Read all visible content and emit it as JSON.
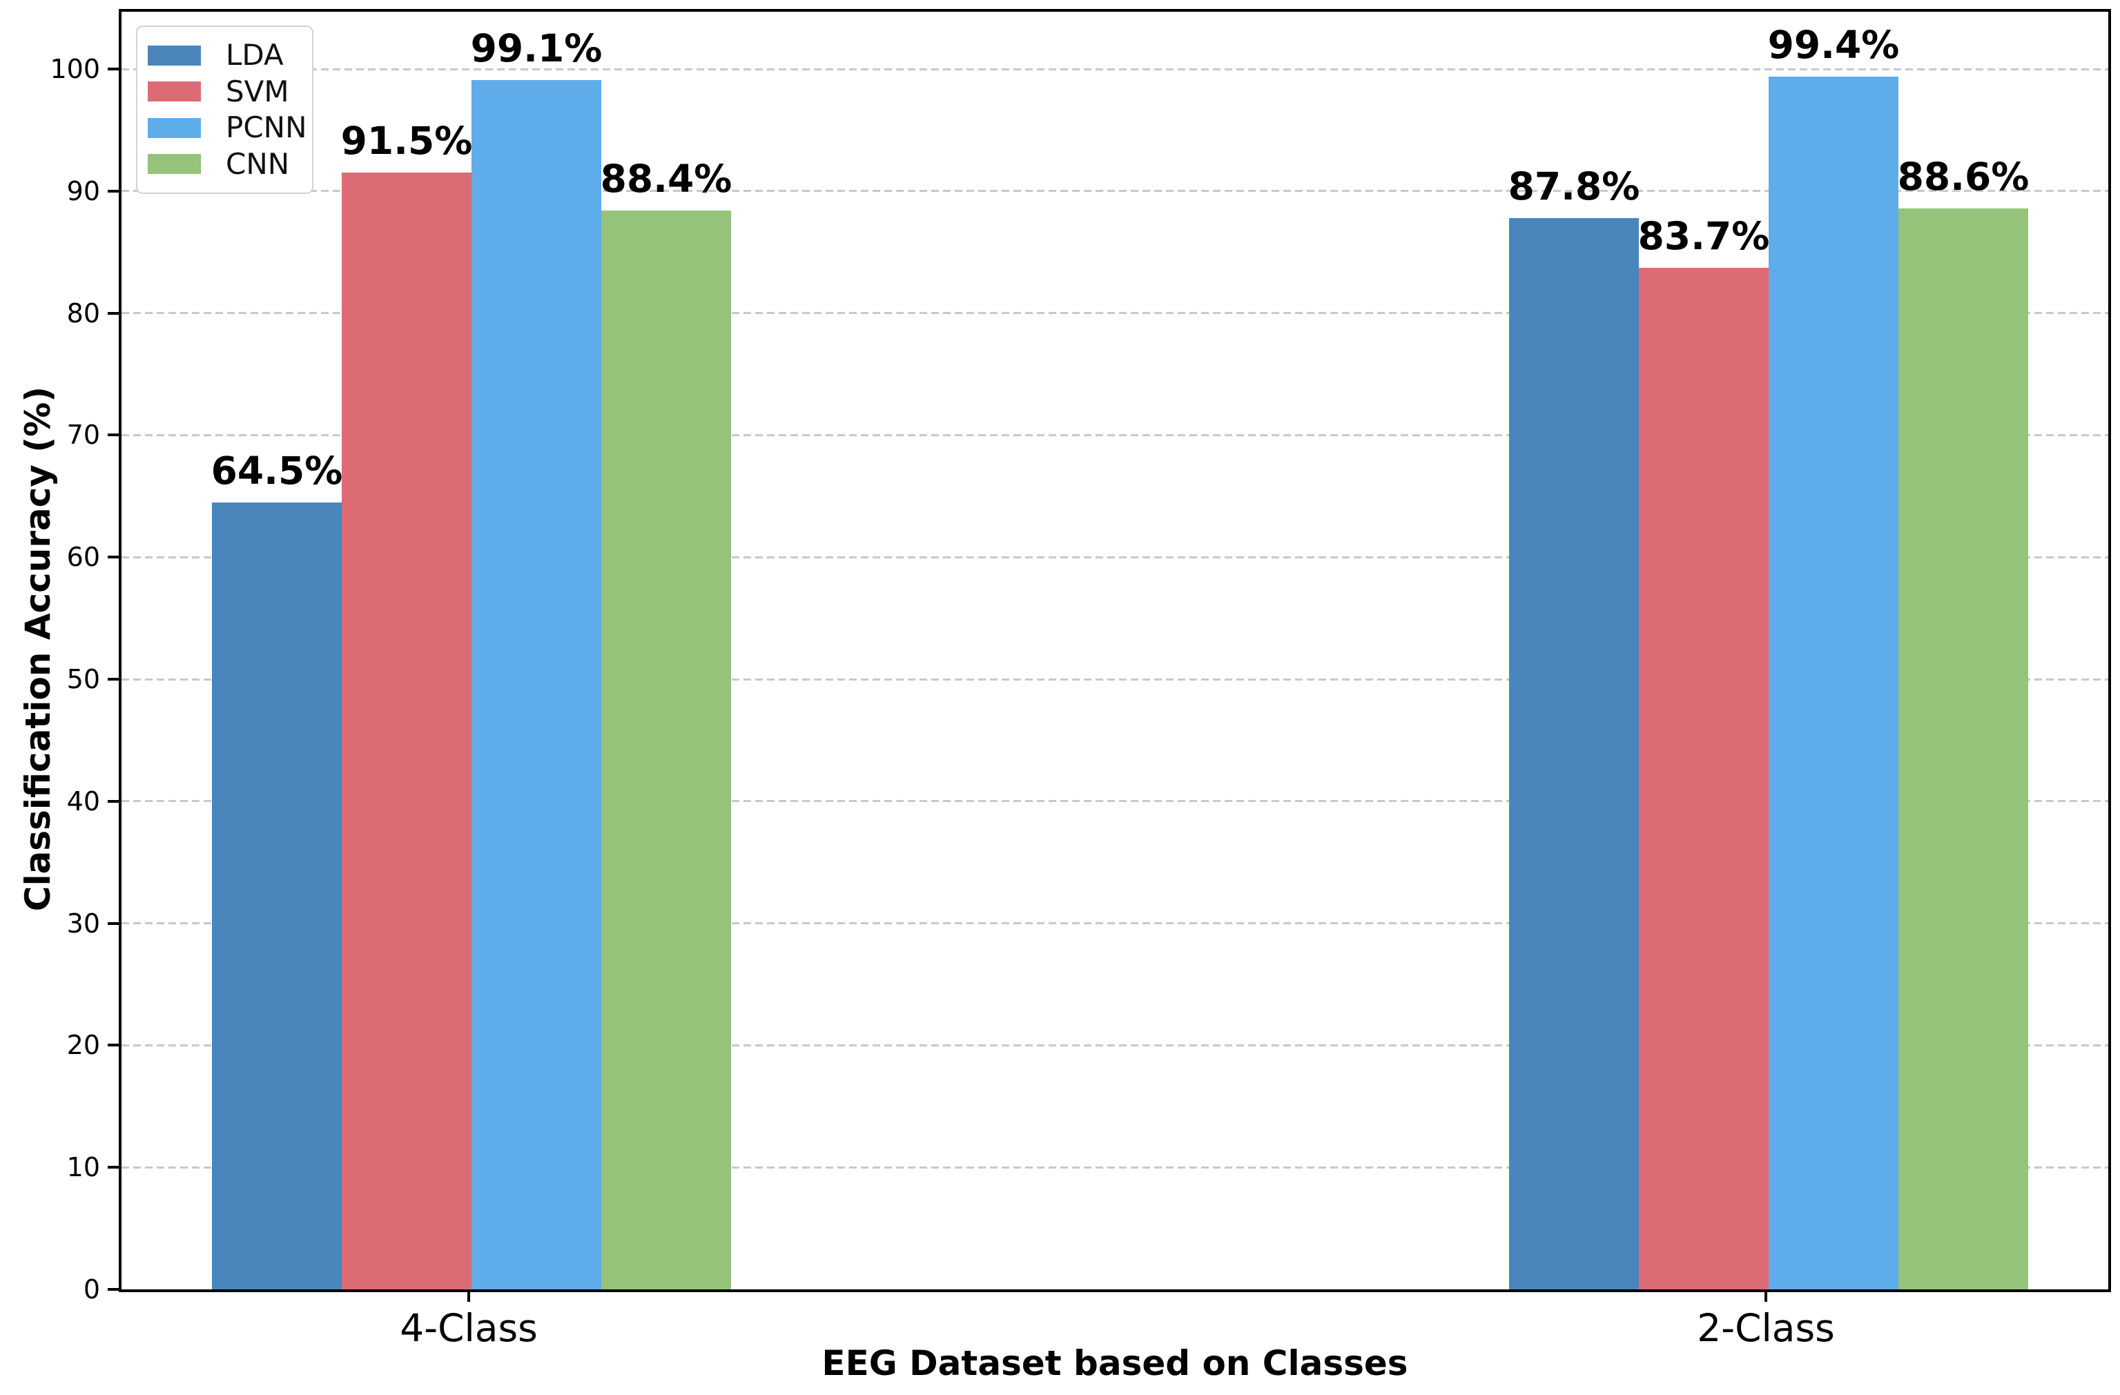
{
  "chart_data": {
    "type": "bar",
    "title": "",
    "xlabel": "EEG Dataset based on Classes",
    "ylabel": "Classification Accuracy (%)",
    "categories": [
      "4-Class",
      "2-Class"
    ],
    "series": [
      {
        "name": "LDA",
        "color": "#4886BC",
        "values": [
          64.5,
          87.8
        ],
        "labels": [
          "64.5%",
          "87.8%"
        ]
      },
      {
        "name": "SVM",
        "color": "#DD6B76",
        "values": [
          91.5,
          83.7
        ],
        "labels": [
          "91.5%",
          "83.7%"
        ]
      },
      {
        "name": "PCNN",
        "color": "#5FACEA",
        "values": [
          99.1,
          99.4
        ],
        "labels": [
          "99.1%",
          "99.4%"
        ]
      },
      {
        "name": "CNN",
        "color": "#95C379",
        "values": [
          88.4,
          88.6
        ],
        "labels": [
          "88.4%",
          "88.6%"
        ]
      }
    ],
    "ylim": [
      0,
      105
    ],
    "yticks": [
      0,
      10,
      20,
      30,
      40,
      50,
      60,
      70,
      80,
      90,
      100
    ],
    "grid": {
      "axis": "y",
      "style": "dashed",
      "color": "#c9c9c9"
    },
    "legend": {
      "position": "upper-left",
      "entries": [
        "LDA",
        "SVM",
        "PCNN",
        "CNN"
      ]
    },
    "frame_color": "#000000",
    "background_color": "#ffffff"
  }
}
